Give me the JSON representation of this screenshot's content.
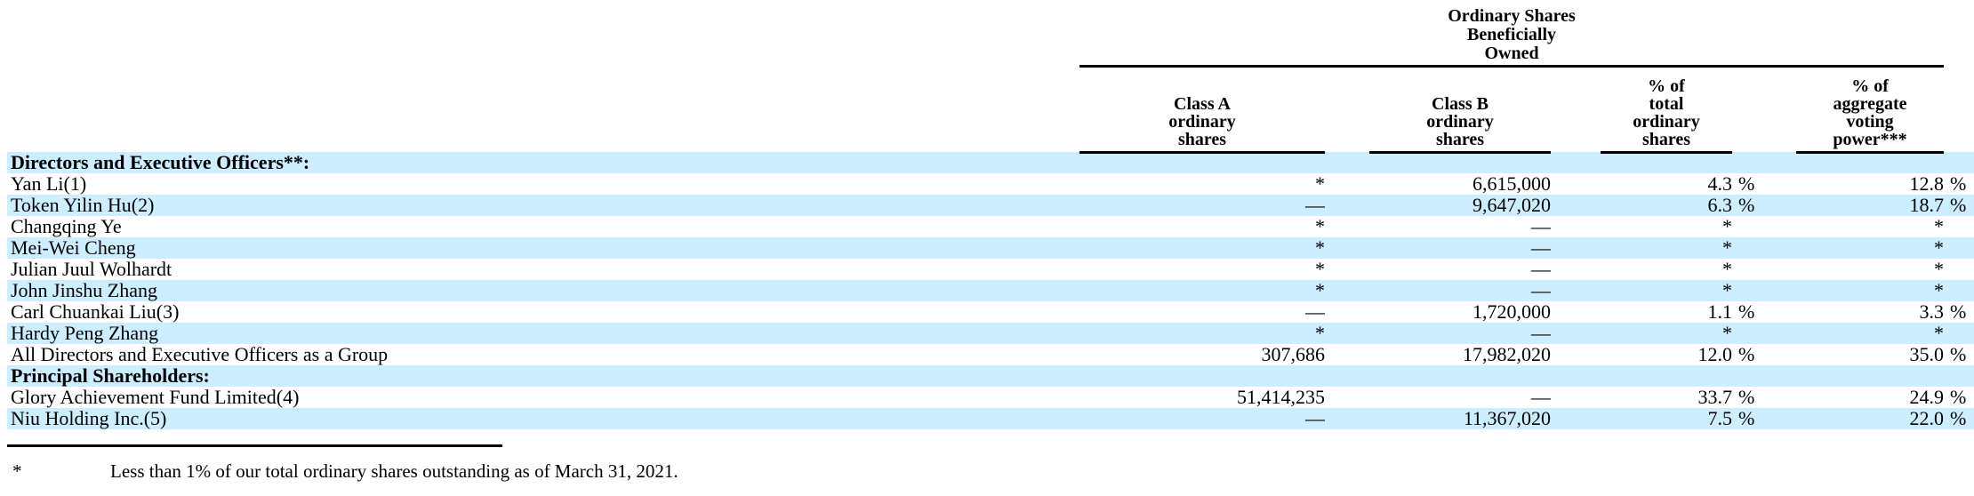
{
  "colors": {
    "row_highlight": "#cceeff",
    "text": "#000000",
    "rule": "#000000"
  },
  "table": {
    "group_header": "Ordinary Shares\nBeneficially\nOwned",
    "col_headers": {
      "class_a": "Class A\nordinary\nshares",
      "class_b": "Class B\nordinary\nshares",
      "pct_total": "% of\ntotal\nordinary\nshares",
      "pct_voting": "% of\naggregate\nvoting\npower***"
    },
    "rows": [
      {
        "label": "Directors and Executive Officers**:",
        "type": "section",
        "class_a": "",
        "class_b": "",
        "pct_total": "",
        "pct_total_sign": "",
        "pct_voting": "",
        "pct_voting_sign": ""
      },
      {
        "label": "Yan Li(1)",
        "type": "data",
        "class_a": "*",
        "class_b": "6,615,000",
        "pct_total": "4.3",
        "pct_total_sign": "%",
        "pct_voting": "12.8",
        "pct_voting_sign": "%"
      },
      {
        "label": "Token Yilin Hu(2)",
        "type": "data",
        "class_a": "—",
        "class_b": "9,647,020",
        "pct_total": "6.3",
        "pct_total_sign": "%",
        "pct_voting": "18.7",
        "pct_voting_sign": "%"
      },
      {
        "label": "Changqing Ye",
        "type": "data",
        "class_a": "*",
        "class_b": "—",
        "pct_total": "*",
        "pct_total_sign": "",
        "pct_voting": "*",
        "pct_voting_sign": ""
      },
      {
        "label": "Mei-Wei Cheng",
        "type": "data",
        "class_a": "*",
        "class_b": "—",
        "pct_total": "*",
        "pct_total_sign": "",
        "pct_voting": "*",
        "pct_voting_sign": ""
      },
      {
        "label": "Julian Juul Wolhardt",
        "type": "data",
        "class_a": "*",
        "class_b": "—",
        "pct_total": "*",
        "pct_total_sign": "",
        "pct_voting": "*",
        "pct_voting_sign": ""
      },
      {
        "label": "John Jinshu Zhang",
        "type": "data",
        "class_a": "*",
        "class_b": "—",
        "pct_total": "*",
        "pct_total_sign": "",
        "pct_voting": "*",
        "pct_voting_sign": ""
      },
      {
        "label": "Carl Chuankai Liu(3)",
        "type": "data",
        "class_a": "—",
        "class_b": "1,720,000",
        "pct_total": "1.1",
        "pct_total_sign": "%",
        "pct_voting": "3.3",
        "pct_voting_sign": "%"
      },
      {
        "label": "Hardy Peng Zhang",
        "type": "data",
        "class_a": "*",
        "class_b": "—",
        "pct_total": "*",
        "pct_total_sign": "",
        "pct_voting": "*",
        "pct_voting_sign": ""
      },
      {
        "label": "All Directors and Executive Officers as a Group",
        "type": "data",
        "class_a": "307,686",
        "class_b": "17,982,020",
        "pct_total": "12.0",
        "pct_total_sign": "%",
        "pct_voting": "35.0",
        "pct_voting_sign": "%"
      },
      {
        "label": "Principal Shareholders:",
        "type": "section",
        "class_a": "",
        "class_b": "",
        "pct_total": "",
        "pct_total_sign": "",
        "pct_voting": "",
        "pct_voting_sign": ""
      },
      {
        "label": "Glory Achievement Fund Limited(4)",
        "type": "data",
        "class_a": "51,414,235",
        "class_b": "—",
        "pct_total": "33.7",
        "pct_total_sign": "%",
        "pct_voting": "24.9",
        "pct_voting_sign": "%"
      },
      {
        "label": "Niu Holding Inc.(5)",
        "type": "data",
        "class_a": "—",
        "class_b": "11,367,020",
        "pct_total": "7.5",
        "pct_total_sign": "%",
        "pct_voting": "22.0",
        "pct_voting_sign": "%"
      }
    ]
  },
  "footnote": {
    "marker": "*",
    "text": "Less than 1% of our total ordinary shares outstanding as of March 31, 2021."
  }
}
